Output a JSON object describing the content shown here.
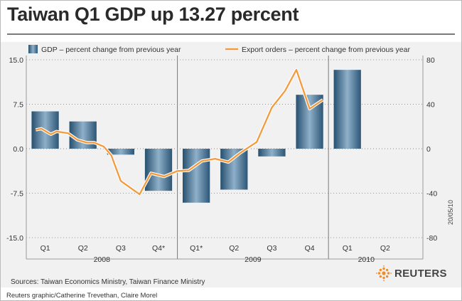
{
  "title": "Taiwan Q1 GDP up 13.27 percent",
  "source": "Sources: Taiwan Economics Ministry, Taiwan Finance Ministry",
  "credit": "Reuters graphic/Catherine Trevethan, Claire Morel",
  "date_code": "20/05/10",
  "brand": {
    "name": "REUTERS",
    "color": "#f28c28"
  },
  "colors": {
    "bar": "#3d6a8e",
    "line": "#f39a3d",
    "panel": "#f1f1f1"
  },
  "chart_data": {
    "type": "bar+line",
    "categories": [
      "Q1",
      "Q2",
      "Q3",
      "Q4*",
      "Q1*",
      "Q2",
      "Q3",
      "Q4",
      "Q1",
      "Q2"
    ],
    "year_labels": [
      {
        "label": "2008",
        "start": 0,
        "end": 3
      },
      {
        "label": "2009",
        "start": 4,
        "end": 7
      },
      {
        "label": "2010",
        "start": 8,
        "end": 9
      }
    ],
    "year_dividers_after": [
      3,
      7
    ],
    "legend_position": "top",
    "series": [
      {
        "name": "GDP – percent change from previous year",
        "type": "bar",
        "axis": "left",
        "values": [
          6.3,
          4.6,
          -1.0,
          -7.1,
          -9.1,
          -6.9,
          -1.3,
          9.1,
          13.3,
          null
        ]
      },
      {
        "name": "Export orders – percent change from previous year",
        "type": "line",
        "axis": "right",
        "points": [
          [
            -0.5,
            17
          ],
          [
            -0.2,
            18
          ],
          [
            0.3,
            13
          ],
          [
            0.6,
            15.5
          ],
          [
            1.2,
            14
          ],
          [
            1.7,
            8
          ],
          [
            2.2,
            5.5
          ],
          [
            2.6,
            5.5
          ],
          [
            3.1,
            2
          ],
          [
            3.5,
            -6
          ],
          [
            4.0,
            -29
          ],
          [
            4.5,
            -35
          ],
          [
            5.0,
            -41
          ],
          [
            5.6,
            -22
          ],
          [
            6.3,
            -25
          ],
          [
            7.0,
            -20
          ],
          [
            7.6,
            -19.5
          ],
          [
            8.3,
            -11
          ],
          [
            9.0,
            -9
          ],
          [
            9.7,
            -12
          ],
          [
            10.3,
            -4
          ],
          [
            11.2,
            6
          ],
          [
            12.0,
            37
          ],
          [
            12.7,
            52
          ],
          [
            13.3,
            71
          ],
          [
            14.0,
            36
          ],
          [
            14.7,
            44
          ]
        ]
      }
    ],
    "y_left": {
      "min": -15,
      "max": 15,
      "ticks": [
        "15.0",
        "7.5",
        "0.0",
        "-7.5",
        "-15.0"
      ]
    },
    "y_right": {
      "min": -80,
      "max": 80,
      "ticks": [
        "80",
        "40",
        "0",
        "-40",
        "-80"
      ]
    },
    "grid": "dotted horizontal"
  }
}
